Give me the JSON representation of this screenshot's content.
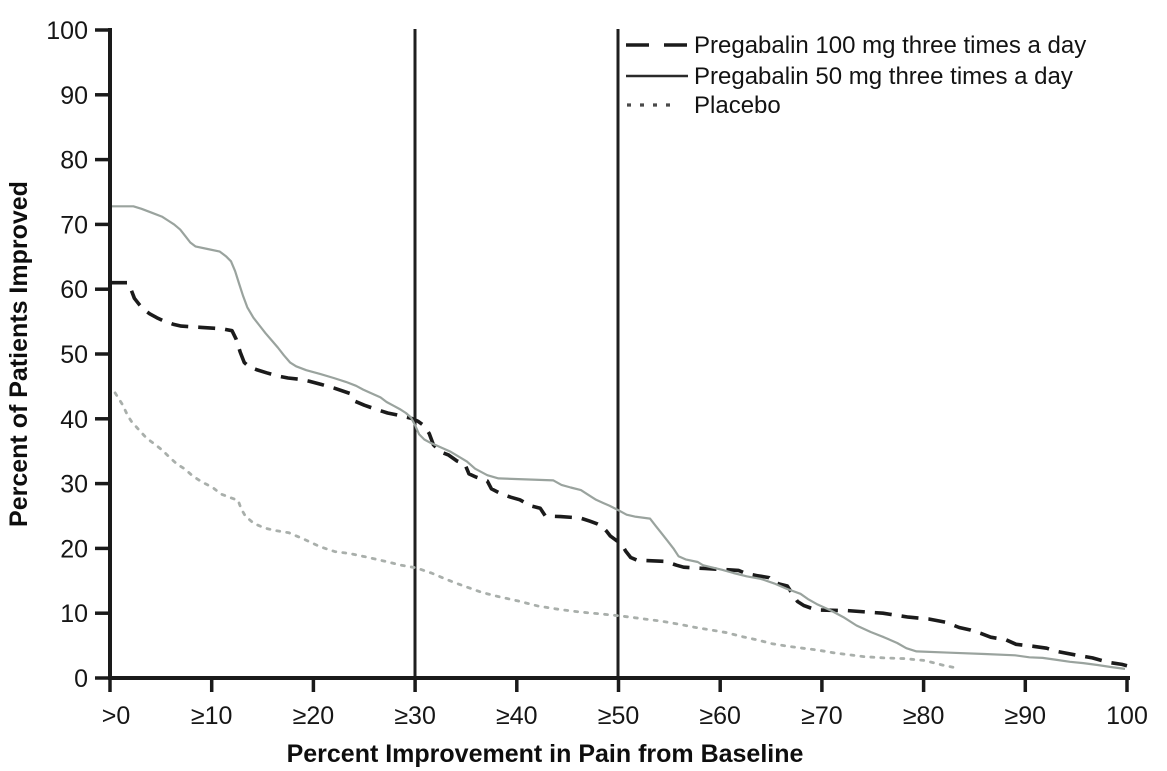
{
  "chart_data": {
    "type": "line",
    "title": "",
    "xlabel": "Percent Improvement in Pain from Baseline",
    "ylabel": "Percent of Patients Improved",
    "xlim": [
      0,
      100
    ],
    "ylim": [
      0,
      100
    ],
    "grid": false,
    "legend_position": "top-right-inside",
    "x_tick_values": [
      0,
      10,
      20,
      30,
      40,
      50,
      60,
      70,
      80,
      90,
      100
    ],
    "x_tick_labels": [
      ">0",
      "≥10",
      "≥20",
      "≥30",
      "≥40",
      "≥50",
      "≥60",
      "≥70",
      "≥80",
      "≥90",
      "100"
    ],
    "y_tick_values": [
      0,
      10,
      20,
      30,
      40,
      50,
      60,
      70,
      80,
      90,
      100
    ],
    "y_tick_labels": [
      "0",
      "10",
      "20",
      "30",
      "40",
      "50",
      "60",
      "70",
      "80",
      "90",
      "100"
    ],
    "reference_lines_x": [
      30,
      50
    ],
    "axis_color": "#1a1a1a",
    "series": [
      {
        "name": "Pregabalin 100 mg three times a day",
        "style": "dashed",
        "color": "#1b1b1b",
        "legend_color": "#1b1b1b",
        "points": [
          [
            0,
            61
          ],
          [
            1.8,
            61
          ],
          [
            2.1,
            59.8
          ],
          [
            2.4,
            58.6
          ],
          [
            2.9,
            57.6
          ],
          [
            3.3,
            56.9
          ],
          [
            3.9,
            56.2
          ],
          [
            4.6,
            55.6
          ],
          [
            5.3,
            55.1
          ],
          [
            6.2,
            54.6
          ],
          [
            7,
            54.3
          ],
          [
            9,
            54.1
          ],
          [
            11,
            53.9
          ],
          [
            12,
            53.6
          ],
          [
            12.4,
            52.3
          ],
          [
            12.8,
            50.3
          ],
          [
            13.2,
            48.7
          ],
          [
            13.7,
            48
          ],
          [
            14.4,
            47.6
          ],
          [
            15.4,
            47.1
          ],
          [
            16.5,
            46.6
          ],
          [
            17.5,
            46.3
          ],
          [
            18.7,
            46.1
          ],
          [
            19.6,
            45.8
          ],
          [
            20.8,
            45.3
          ],
          [
            22.1,
            44.7
          ],
          [
            23.6,
            43.9
          ],
          [
            24.1,
            42.7
          ],
          [
            25,
            42.1
          ],
          [
            26.1,
            41.5
          ],
          [
            27.3,
            40.9
          ],
          [
            28.2,
            40.6
          ],
          [
            29.6,
            40.1
          ],
          [
            30.3,
            39.6
          ],
          [
            30.9,
            38.9
          ],
          [
            31.4,
            37.7
          ],
          [
            31.8,
            36
          ],
          [
            32.5,
            34.9
          ],
          [
            33.3,
            34.4
          ],
          [
            34.1,
            33.5
          ],
          [
            34.9,
            33
          ],
          [
            35.3,
            31.5
          ],
          [
            36,
            31
          ],
          [
            37.1,
            30.4
          ],
          [
            37.5,
            29.2
          ],
          [
            38.5,
            28.4
          ],
          [
            39.4,
            27.9
          ],
          [
            40.3,
            27.5
          ],
          [
            41.3,
            26.6
          ],
          [
            42.3,
            26.2
          ],
          [
            42.8,
            25
          ],
          [
            44.3,
            24.9
          ],
          [
            46.2,
            24.7
          ],
          [
            47.2,
            24.2
          ],
          [
            47.9,
            23.8
          ],
          [
            48.4,
            23.4
          ],
          [
            48.8,
            22.7
          ],
          [
            49.2,
            21.9
          ],
          [
            49.8,
            21.2
          ],
          [
            50.3,
            20.7
          ],
          [
            50.7,
            19.6
          ],
          [
            51.2,
            18.6
          ],
          [
            51.8,
            18.2
          ],
          [
            54.6,
            18
          ],
          [
            55.7,
            17.4
          ],
          [
            56.4,
            17.1
          ],
          [
            58.5,
            16.9
          ],
          [
            61.8,
            16.6
          ],
          [
            62.6,
            16.1
          ],
          [
            63.6,
            15.8
          ],
          [
            64.8,
            15.5
          ],
          [
            65.2,
            14.9
          ],
          [
            65.8,
            14.5
          ],
          [
            66.6,
            14.2
          ],
          [
            67.1,
            13
          ],
          [
            67.6,
            11.8
          ],
          [
            68.2,
            11.2
          ],
          [
            68.9,
            10.8
          ],
          [
            69.5,
            10.5
          ],
          [
            72.5,
            10.4
          ],
          [
            76,
            10
          ],
          [
            78.5,
            9.4
          ],
          [
            80.5,
            9.1
          ],
          [
            82.2,
            8.6
          ],
          [
            83.5,
            7.8
          ],
          [
            84.6,
            7.4
          ],
          [
            85.6,
            6.9
          ],
          [
            86.6,
            6.3
          ],
          [
            88.1,
            5.9
          ],
          [
            89.1,
            5.2
          ],
          [
            90.7,
            4.9
          ],
          [
            92.1,
            4.6
          ],
          [
            93.1,
            4.1
          ],
          [
            95.1,
            3.5
          ],
          [
            96.6,
            3.1
          ],
          [
            97.3,
            2.8
          ],
          [
            98.2,
            2.4
          ],
          [
            99.5,
            2.1
          ],
          [
            100,
            1.9
          ]
        ]
      },
      {
        "name": "Pregabalin 50 mg three times a day",
        "style": "solid",
        "color": "#9aa39e",
        "legend_color": "#2a2a2a",
        "points": [
          [
            0,
            72.8
          ],
          [
            2.3,
            72.8
          ],
          [
            3.1,
            72.4
          ],
          [
            4.1,
            71.8
          ],
          [
            5.1,
            71.2
          ],
          [
            5.7,
            70.6
          ],
          [
            6.3,
            70
          ],
          [
            6.9,
            69.2
          ],
          [
            7.4,
            68.2
          ],
          [
            7.9,
            67.2
          ],
          [
            8.4,
            66.6
          ],
          [
            9.6,
            66.2
          ],
          [
            10.8,
            65.8
          ],
          [
            11.4,
            65.1
          ],
          [
            11.9,
            64.3
          ],
          [
            12.3,
            62.8
          ],
          [
            12.7,
            60.8
          ],
          [
            13.1,
            58.9
          ],
          [
            13.5,
            57.2
          ],
          [
            14.1,
            55.6
          ],
          [
            14.7,
            54.4
          ],
          [
            15.3,
            53.2
          ],
          [
            15.9,
            52.1
          ],
          [
            16.5,
            51
          ],
          [
            17.1,
            49.8
          ],
          [
            17.7,
            48.7
          ],
          [
            18.3,
            48.1
          ],
          [
            19.3,
            47.5
          ],
          [
            20.7,
            46.9
          ],
          [
            22,
            46.3
          ],
          [
            23.2,
            45.7
          ],
          [
            24.2,
            45.1
          ],
          [
            24.9,
            44.5
          ],
          [
            25.6,
            44
          ],
          [
            26.6,
            43.3
          ],
          [
            27.2,
            42.6
          ],
          [
            27.9,
            42
          ],
          [
            28.5,
            41.5
          ],
          [
            29.1,
            40.9
          ],
          [
            29.6,
            40.2
          ],
          [
            30,
            39
          ],
          [
            30.4,
            37.6
          ],
          [
            30.9,
            36.8
          ],
          [
            31.5,
            36.3
          ],
          [
            33.5,
            34.9
          ],
          [
            35.1,
            33.4
          ],
          [
            35.9,
            32.3
          ],
          [
            37.1,
            31.3
          ],
          [
            38.2,
            30.8
          ],
          [
            43.6,
            30.5
          ],
          [
            44.4,
            29.8
          ],
          [
            45.3,
            29.4
          ],
          [
            46.3,
            29
          ],
          [
            47.2,
            28.1
          ],
          [
            47.8,
            27.5
          ],
          [
            48.5,
            27
          ],
          [
            49.1,
            26.6
          ],
          [
            50.1,
            25.8
          ],
          [
            50.8,
            25.2
          ],
          [
            51.6,
            24.9
          ],
          [
            53.1,
            24.6
          ],
          [
            53.7,
            23.4
          ],
          [
            54.1,
            22.6
          ],
          [
            54.8,
            21.2
          ],
          [
            55.4,
            20
          ],
          [
            55.9,
            18.8
          ],
          [
            56.6,
            18.3
          ],
          [
            57.8,
            17.9
          ],
          [
            58.3,
            17.4
          ],
          [
            59.1,
            17.1
          ],
          [
            60.2,
            16.7
          ],
          [
            61.3,
            16.2
          ],
          [
            62.6,
            15.7
          ],
          [
            64,
            15.3
          ],
          [
            65.3,
            14.6
          ],
          [
            66.5,
            13.8
          ],
          [
            67.9,
            13
          ],
          [
            68.6,
            12.2
          ],
          [
            69.5,
            11.4
          ],
          [
            70.9,
            10.4
          ],
          [
            72.1,
            9.4
          ],
          [
            73.4,
            8.1
          ],
          [
            74.8,
            7.1
          ],
          [
            76.1,
            6.3
          ],
          [
            77.4,
            5.4
          ],
          [
            78.3,
            4.6
          ],
          [
            79.3,
            4.1
          ],
          [
            82.6,
            3.9
          ],
          [
            86,
            3.7
          ],
          [
            89,
            3.5
          ],
          [
            90.4,
            3.2
          ],
          [
            91.7,
            3.1
          ],
          [
            93.1,
            2.8
          ],
          [
            94.4,
            2.5
          ],
          [
            95.7,
            2.3
          ],
          [
            97.1,
            2
          ],
          [
            98.4,
            1.7
          ],
          [
            99.8,
            1.4
          ]
        ]
      },
      {
        "name": "Placebo",
        "style": "dotted",
        "color": "#a9afab",
        "legend_color": "#4a4a4a",
        "points": [
          [
            0.5,
            44
          ],
          [
            0.9,
            43
          ],
          [
            1.3,
            42
          ],
          [
            1.7,
            40.6
          ],
          [
            2.1,
            39.6
          ],
          [
            2.9,
            38.2
          ],
          [
            3.6,
            37
          ],
          [
            4.3,
            36.2
          ],
          [
            5.1,
            35.2
          ],
          [
            5.9,
            34
          ],
          [
            6.6,
            33
          ],
          [
            7.4,
            32.2
          ],
          [
            8.1,
            31.2
          ],
          [
            9.1,
            30.2
          ],
          [
            10.1,
            29.4
          ],
          [
            10.9,
            28.4
          ],
          [
            11.9,
            27.8
          ],
          [
            12.6,
            27.4
          ],
          [
            12.9,
            26.1
          ],
          [
            13.3,
            25
          ],
          [
            14.1,
            23.9
          ],
          [
            15.1,
            23.2
          ],
          [
            16.1,
            22.8
          ],
          [
            17.6,
            22.4
          ],
          [
            19.1,
            21.4
          ],
          [
            20.6,
            20.3
          ],
          [
            22.1,
            19.5
          ],
          [
            23.6,
            19.2
          ],
          [
            25.1,
            18.7
          ],
          [
            27.1,
            18
          ],
          [
            28.6,
            17.4
          ],
          [
            30.1,
            17
          ],
          [
            31.6,
            16.2
          ],
          [
            33.1,
            15.2
          ],
          [
            34.6,
            14.3
          ],
          [
            36.6,
            13.2
          ],
          [
            38.1,
            12.6
          ],
          [
            40.1,
            11.9
          ],
          [
            42.1,
            11.1
          ],
          [
            44.1,
            10.6
          ],
          [
            46.1,
            10.2
          ],
          [
            48.1,
            9.9
          ],
          [
            50.1,
            9.6
          ],
          [
            52.1,
            9.2
          ],
          [
            54.1,
            8.8
          ],
          [
            55.6,
            8.4
          ],
          [
            57.6,
            7.8
          ],
          [
            59.1,
            7.4
          ],
          [
            60.6,
            7
          ],
          [
            62.1,
            6.4
          ],
          [
            63.6,
            5.9
          ],
          [
            65.1,
            5.3
          ],
          [
            66.6,
            4.9
          ],
          [
            68.1,
            4.6
          ],
          [
            69.6,
            4.3
          ],
          [
            71.1,
            3.9
          ],
          [
            72.6,
            3.6
          ],
          [
            74.1,
            3.3
          ],
          [
            76.1,
            3.1
          ],
          [
            78.1,
            3
          ],
          [
            80.1,
            2.7
          ],
          [
            81.1,
            2.3
          ],
          [
            82.1,
            1.9
          ],
          [
            83.1,
            1.6
          ]
        ]
      }
    ]
  }
}
